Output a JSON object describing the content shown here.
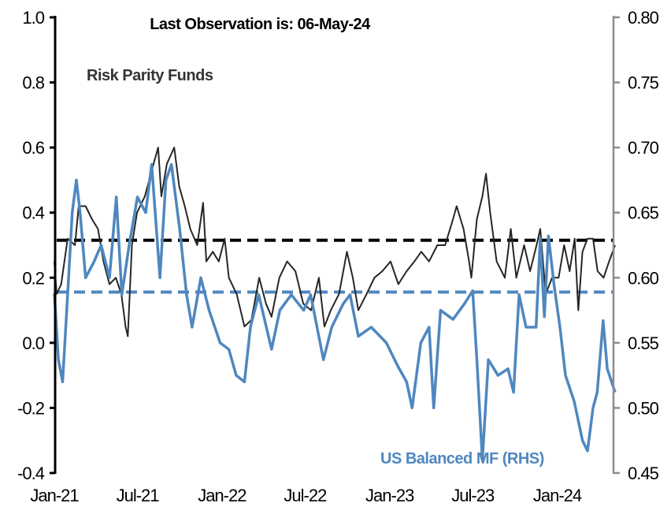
{
  "chart_data": {
    "type": "line",
    "title": "Last Observation is: 06-May-24",
    "xlabel": "",
    "ylabel": "",
    "x_ticks": [
      "Jan-21",
      "Jul-21",
      "Jan-22",
      "Jul-22",
      "Jan-23",
      "Jul-23",
      "Jan-24"
    ],
    "x_tick_dates": [
      "2021-01-01",
      "2021-07-01",
      "2022-01-01",
      "2022-07-01",
      "2023-01-01",
      "2023-07-01",
      "2024-01-01"
    ],
    "xlim": [
      "2021-01-01",
      "2024-05-06"
    ],
    "y_left": {
      "ylim": [
        -0.4,
        1.0
      ],
      "ticks": [
        "1.0",
        "0.8",
        "0.6",
        "0.4",
        "0.2",
        "0.0",
        "-0.2",
        "-0.4"
      ],
      "tick_values": [
        1.0,
        0.8,
        0.6,
        0.4,
        0.2,
        0.0,
        -0.2,
        -0.4
      ]
    },
    "y_right": {
      "ylim": [
        0.45,
        0.8
      ],
      "ticks": [
        "0.80",
        "0.75",
        "0.70",
        "0.65",
        "0.60",
        "0.55",
        "0.50",
        "0.45"
      ],
      "tick_values": [
        0.8,
        0.75,
        0.7,
        0.65,
        0.6,
        0.55,
        0.5,
        0.45
      ]
    },
    "grid": false,
    "legend": "none (inline labels)",
    "series": [
      {
        "name": "Risk Parity Funds",
        "axis": "left",
        "color": "#262626",
        "average": 0.315,
        "points": [
          [
            "2021-01-01",
            0.25
          ],
          [
            "2021-01-06",
            0.15
          ],
          [
            "2021-01-16",
            0.18
          ],
          [
            "2021-01-30",
            0.32
          ],
          [
            "2021-02-15",
            0.3
          ],
          [
            "2021-02-23",
            0.42
          ],
          [
            "2021-03-10",
            0.42
          ],
          [
            "2021-03-24",
            0.38
          ],
          [
            "2021-04-06",
            0.35
          ],
          [
            "2021-04-18",
            0.25
          ],
          [
            "2021-05-01",
            0.18
          ],
          [
            "2021-05-15",
            0.2
          ],
          [
            "2021-05-27",
            0.15
          ],
          [
            "2021-06-05",
            0.05
          ],
          [
            "2021-06-10",
            0.02
          ],
          [
            "2021-06-19",
            0.3
          ],
          [
            "2021-06-30",
            0.4
          ],
          [
            "2021-07-17",
            0.45
          ],
          [
            "2021-08-05",
            0.55
          ],
          [
            "2021-08-15",
            0.6
          ],
          [
            "2021-08-22",
            0.45
          ],
          [
            "2021-09-03",
            0.55
          ],
          [
            "2021-09-19",
            0.6
          ],
          [
            "2021-09-30",
            0.48
          ],
          [
            "2021-10-12",
            0.42
          ],
          [
            "2021-10-24",
            0.35
          ],
          [
            "2021-11-08",
            0.3
          ],
          [
            "2021-11-21",
            0.43
          ],
          [
            "2021-11-28",
            0.25
          ],
          [
            "2021-12-12",
            0.28
          ],
          [
            "2021-12-25",
            0.25
          ],
          [
            "2022-01-07",
            0.32
          ],
          [
            "2022-01-16",
            0.2
          ],
          [
            "2022-02-02",
            0.15
          ],
          [
            "2022-02-19",
            0.05
          ],
          [
            "2022-03-06",
            0.07
          ],
          [
            "2022-03-23",
            0.2
          ],
          [
            "2022-04-07",
            0.12
          ],
          [
            "2022-04-19",
            0.08
          ],
          [
            "2022-05-06",
            0.2
          ],
          [
            "2022-05-23",
            0.25
          ],
          [
            "2022-06-10",
            0.22
          ],
          [
            "2022-06-27",
            0.12
          ],
          [
            "2022-07-14",
            0.1
          ],
          [
            "2022-07-31",
            0.2
          ],
          [
            "2022-08-12",
            0.05
          ],
          [
            "2022-08-26",
            0.1
          ],
          [
            "2022-09-13",
            0.15
          ],
          [
            "2022-09-30",
            0.28
          ],
          [
            "2022-10-13",
            0.2
          ],
          [
            "2022-10-25",
            0.1
          ],
          [
            "2022-11-12",
            0.15
          ],
          [
            "2022-11-29",
            0.2
          ],
          [
            "2022-12-16",
            0.22
          ],
          [
            "2023-01-03",
            0.25
          ],
          [
            "2023-01-20",
            0.18
          ],
          [
            "2023-02-07",
            0.22
          ],
          [
            "2023-02-24",
            0.25
          ],
          [
            "2023-03-11",
            0.28
          ],
          [
            "2023-03-28",
            0.25
          ],
          [
            "2023-04-15",
            0.3
          ],
          [
            "2023-05-02",
            0.3
          ],
          [
            "2023-05-19",
            0.38
          ],
          [
            "2023-05-27",
            0.42
          ],
          [
            "2023-06-11",
            0.35
          ],
          [
            "2023-06-23",
            0.25
          ],
          [
            "2023-06-28",
            0.2
          ],
          [
            "2023-07-10",
            0.38
          ],
          [
            "2023-07-22",
            0.45
          ],
          [
            "2023-07-30",
            0.52
          ],
          [
            "2023-08-08",
            0.4
          ],
          [
            "2023-08-22",
            0.25
          ],
          [
            "2023-09-09",
            0.2
          ],
          [
            "2023-09-22",
            0.35
          ],
          [
            "2023-10-04",
            0.2
          ],
          [
            "2023-10-21",
            0.3
          ],
          [
            "2023-11-03",
            0.22
          ],
          [
            "2023-11-17",
            0.3
          ],
          [
            "2023-11-25",
            0.35
          ],
          [
            "2023-12-07",
            0.15
          ],
          [
            "2023-12-21",
            0.2
          ],
          [
            "2024-01-04",
            0.2
          ],
          [
            "2024-01-16",
            0.3
          ],
          [
            "2024-01-28",
            0.22
          ],
          [
            "2024-02-08",
            0.32
          ],
          [
            "2024-02-16",
            0.1
          ],
          [
            "2024-02-25",
            0.28
          ],
          [
            "2024-03-07",
            0.32
          ],
          [
            "2024-03-19",
            0.32
          ],
          [
            "2024-03-29",
            0.22
          ],
          [
            "2024-04-11",
            0.2
          ],
          [
            "2024-04-23",
            0.25
          ],
          [
            "2024-05-06",
            0.3
          ]
        ]
      },
      {
        "name": "US Balanced MF (RHS)",
        "axis": "right",
        "color": "#4f87bf",
        "average": 0.589,
        "points": [
          [
            "2021-01-01",
            0.588
          ],
          [
            "2021-01-10",
            0.537
          ],
          [
            "2021-01-19",
            0.52
          ],
          [
            "2021-02-01",
            0.6
          ],
          [
            "2021-02-09",
            0.65
          ],
          [
            "2021-02-18",
            0.675
          ],
          [
            "2021-02-26",
            0.65
          ],
          [
            "2021-03-10",
            0.6
          ],
          [
            "2021-03-28",
            0.612
          ],
          [
            "2021-04-13",
            0.625
          ],
          [
            "2021-05-01",
            0.6
          ],
          [
            "2021-05-16",
            0.662
          ],
          [
            "2021-05-28",
            0.587
          ],
          [
            "2021-06-13",
            0.625
          ],
          [
            "2021-07-01",
            0.662
          ],
          [
            "2021-07-19",
            0.65
          ],
          [
            "2021-08-01",
            0.687
          ],
          [
            "2021-08-19",
            0.6
          ],
          [
            "2021-09-01",
            0.675
          ],
          [
            "2021-09-13",
            0.687
          ],
          [
            "2021-10-01",
            0.637
          ],
          [
            "2021-10-16",
            0.587
          ],
          [
            "2021-10-28",
            0.562
          ],
          [
            "2021-11-16",
            0.6
          ],
          [
            "2021-12-04",
            0.575
          ],
          [
            "2021-12-28",
            0.55
          ],
          [
            "2022-01-16",
            0.545
          ],
          [
            "2022-02-01",
            0.525
          ],
          [
            "2022-02-19",
            0.52
          ],
          [
            "2022-03-04",
            0.562
          ],
          [
            "2022-03-22",
            0.587
          ],
          [
            "2022-04-19",
            0.545
          ],
          [
            "2022-05-07",
            0.575
          ],
          [
            "2022-06-01",
            0.587
          ],
          [
            "2022-06-28",
            0.575
          ],
          [
            "2022-07-13",
            0.587
          ],
          [
            "2022-08-10",
            0.537
          ],
          [
            "2022-08-28",
            0.562
          ],
          [
            "2022-09-22",
            0.58
          ],
          [
            "2022-10-07",
            0.587
          ],
          [
            "2022-10-25",
            0.555
          ],
          [
            "2022-11-22",
            0.562
          ],
          [
            "2022-12-25",
            0.55
          ],
          [
            "2023-01-19",
            0.532
          ],
          [
            "2023-02-07",
            0.52
          ],
          [
            "2023-02-19",
            0.5
          ],
          [
            "2023-03-10",
            0.55
          ],
          [
            "2023-03-28",
            0.562
          ],
          [
            "2023-04-07",
            0.5
          ],
          [
            "2023-04-22",
            0.575
          ],
          [
            "2023-05-19",
            0.568
          ],
          [
            "2023-06-13",
            0.58
          ],
          [
            "2023-07-01",
            0.59
          ],
          [
            "2023-07-10",
            0.537
          ],
          [
            "2023-07-22",
            0.46
          ],
          [
            "2023-08-04",
            0.537
          ],
          [
            "2023-08-25",
            0.525
          ],
          [
            "2023-09-16",
            0.53
          ],
          [
            "2023-09-28",
            0.512
          ],
          [
            "2023-10-10",
            0.587
          ],
          [
            "2023-10-25",
            0.562
          ],
          [
            "2023-11-16",
            0.562
          ],
          [
            "2023-11-25",
            0.63
          ],
          [
            "2023-12-04",
            0.57
          ],
          [
            "2023-12-13",
            0.632
          ],
          [
            "2023-12-25",
            0.595
          ],
          [
            "2024-01-07",
            0.562
          ],
          [
            "2024-01-19",
            0.525
          ],
          [
            "2024-02-07",
            0.505
          ],
          [
            "2024-02-25",
            0.475
          ],
          [
            "2024-03-07",
            0.467
          ],
          [
            "2024-03-19",
            0.5
          ],
          [
            "2024-03-28",
            0.512
          ],
          [
            "2024-04-10",
            0.567
          ],
          [
            "2024-04-19",
            0.53
          ],
          [
            "2024-05-06",
            0.512
          ]
        ]
      }
    ]
  }
}
